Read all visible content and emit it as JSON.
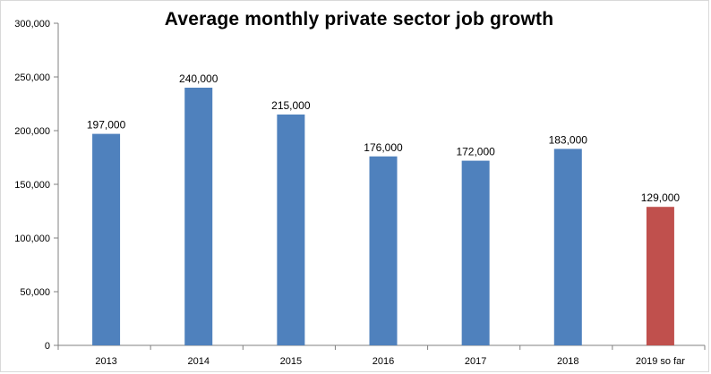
{
  "chart_data": {
    "type": "bar",
    "title": "Average monthly private sector job growth",
    "xlabel": "",
    "ylabel": "",
    "categories": [
      "2013",
      "2014",
      "2015",
      "2016",
      "2017",
      "2018",
      "2019 so far"
    ],
    "values": [
      197000,
      240000,
      215000,
      176000,
      172000,
      183000,
      129000
    ],
    "data_labels": [
      "197,000",
      "240,000",
      "215,000",
      "176,000",
      "172,000",
      "183,000",
      "129,000"
    ],
    "bar_colors": [
      "#4f81bd",
      "#4f81bd",
      "#4f81bd",
      "#4f81bd",
      "#4f81bd",
      "#4f81bd",
      "#c0504d"
    ],
    "ylim": [
      0,
      300000
    ],
    "yticks": [
      0,
      50000,
      100000,
      150000,
      200000,
      250000,
      300000
    ],
    "ytick_labels": [
      "0",
      "50,000",
      "100,000",
      "150,000",
      "200,000",
      "250,000",
      "300,000"
    ],
    "grid": false,
    "legend": "none"
  }
}
